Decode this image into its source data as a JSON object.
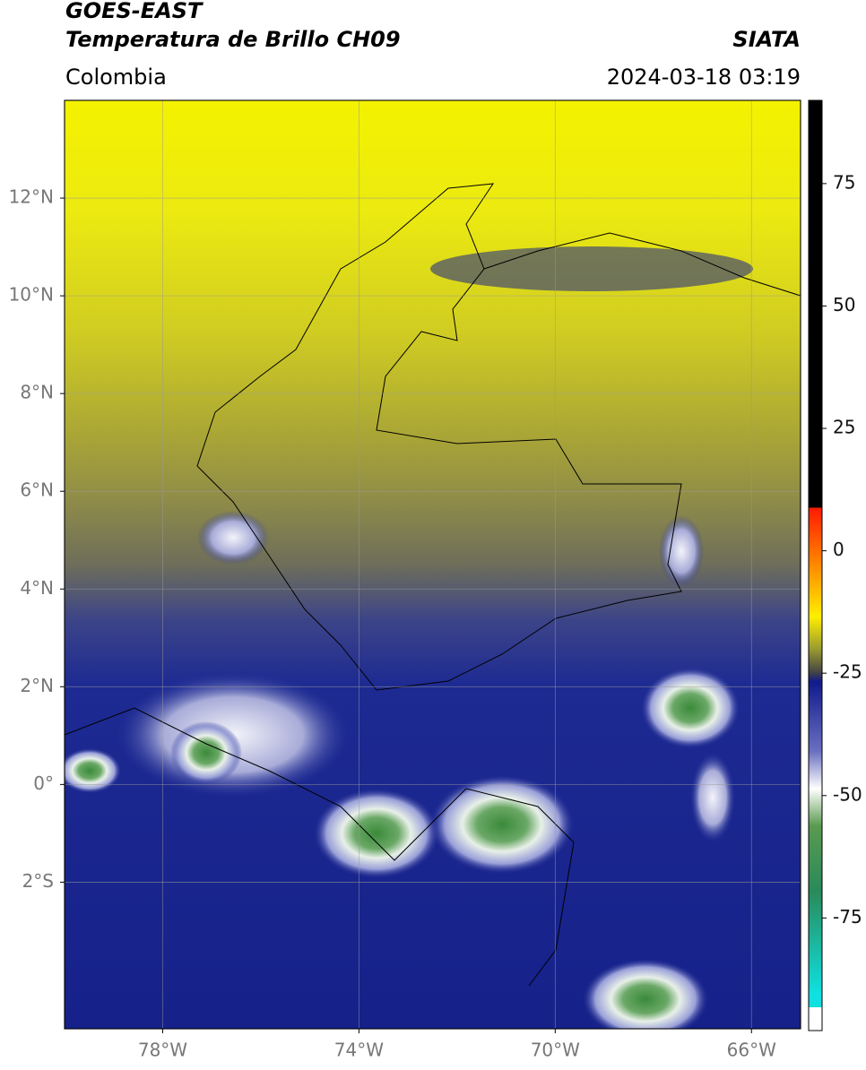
{
  "header": {
    "satellite": "GOES-EAST",
    "product": "Temperatura de Brillo CH09",
    "source": "SIATA",
    "region": "Colombia",
    "datetime": "2024-03-18 03:19"
  },
  "map": {
    "xlim": [
      -80,
      -65
    ],
    "ylim": [
      -5,
      14
    ],
    "xticks": [
      {
        "value": -78,
        "label": "78°W"
      },
      {
        "value": -74,
        "label": "74°W"
      },
      {
        "value": -70,
        "label": "70°W"
      },
      {
        "value": -66,
        "label": "66°W"
      }
    ],
    "yticks": [
      {
        "value": 12,
        "label": "12°N"
      },
      {
        "value": 10,
        "label": "10°N"
      },
      {
        "value": 8,
        "label": "8°N"
      },
      {
        "value": 6,
        "label": "6°N"
      },
      {
        "value": 4,
        "label": "4°N"
      },
      {
        "value": 2,
        "label": "2°N"
      },
      {
        "value": 0,
        "label": "0°"
      },
      {
        "value": -2,
        "label": "2°S"
      }
    ],
    "grid": true
  },
  "colorbar": {
    "lim": [
      -98,
      92
    ],
    "ticks": [
      75,
      50,
      25,
      0,
      -25,
      -50,
      -75
    ]
  }
}
